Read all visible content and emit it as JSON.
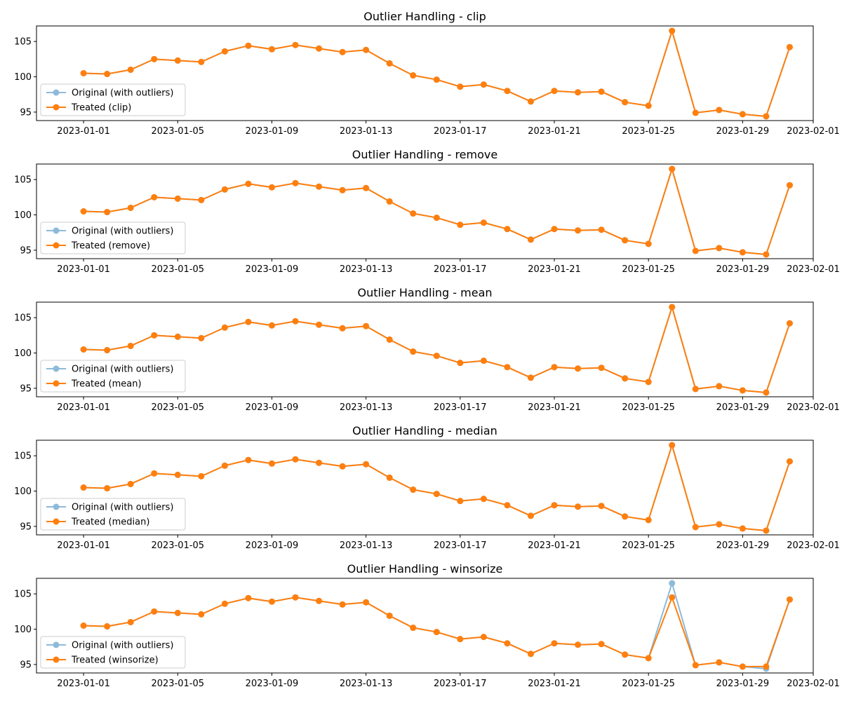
{
  "chart_data": [
    {
      "type": "line",
      "title": "Outlier Handling - clip",
      "x": [
        "2023-01-01",
        "2023-01-02",
        "2023-01-03",
        "2023-01-04",
        "2023-01-05",
        "2023-01-06",
        "2023-01-07",
        "2023-01-08",
        "2023-01-09",
        "2023-01-10",
        "2023-01-11",
        "2023-01-12",
        "2023-01-13",
        "2023-01-14",
        "2023-01-15",
        "2023-01-16",
        "2023-01-17",
        "2023-01-18",
        "2023-01-19",
        "2023-01-20",
        "2023-01-21",
        "2023-01-22",
        "2023-01-23",
        "2023-01-24",
        "2023-01-25",
        "2023-01-26",
        "2023-01-27",
        "2023-01-28",
        "2023-01-29",
        "2023-01-30",
        "2023-01-31"
      ],
      "xticks": [
        "2023-01-01",
        "2023-01-05",
        "2023-01-09",
        "2023-01-13",
        "2023-01-17",
        "2023-01-21",
        "2023-01-25",
        "2023-01-29",
        "2023-02-01"
      ],
      "xlim": [
        "2022-12-30",
        "2023-02-01"
      ],
      "yticks": [
        95,
        100,
        105
      ],
      "ylim": [
        93.8,
        107.2
      ],
      "legend_position": "lower-left",
      "series": [
        {
          "name": "Original (with outliers)",
          "color": "#1f77b4",
          "values": [
            100.5,
            100.4,
            101.0,
            102.5,
            102.3,
            102.1,
            103.6,
            104.4,
            103.9,
            104.5,
            104.0,
            103.5,
            103.8,
            101.9,
            100.2,
            99.6,
            98.6,
            98.9,
            98.0,
            96.5,
            98.0,
            97.8,
            97.9,
            96.4,
            95.9,
            106.5,
            94.9,
            95.3,
            94.7,
            94.4,
            104.2
          ]
        },
        {
          "name": "Treated (clip)",
          "color": "#ff7f0e",
          "values": [
            100.5,
            100.4,
            101.0,
            102.5,
            102.3,
            102.1,
            103.6,
            104.4,
            103.9,
            104.5,
            104.0,
            103.5,
            103.8,
            101.9,
            100.2,
            99.6,
            98.6,
            98.9,
            98.0,
            96.5,
            98.0,
            97.8,
            97.9,
            96.4,
            95.9,
            106.5,
            94.9,
            95.3,
            94.7,
            94.4,
            104.2
          ]
        }
      ]
    },
    {
      "type": "line",
      "title": "Outlier Handling - remove",
      "x": [
        "2023-01-01",
        "2023-01-02",
        "2023-01-03",
        "2023-01-04",
        "2023-01-05",
        "2023-01-06",
        "2023-01-07",
        "2023-01-08",
        "2023-01-09",
        "2023-01-10",
        "2023-01-11",
        "2023-01-12",
        "2023-01-13",
        "2023-01-14",
        "2023-01-15",
        "2023-01-16",
        "2023-01-17",
        "2023-01-18",
        "2023-01-19",
        "2023-01-20",
        "2023-01-21",
        "2023-01-22",
        "2023-01-23",
        "2023-01-24",
        "2023-01-25",
        "2023-01-26",
        "2023-01-27",
        "2023-01-28",
        "2023-01-29",
        "2023-01-30",
        "2023-01-31"
      ],
      "xticks": [
        "2023-01-01",
        "2023-01-05",
        "2023-01-09",
        "2023-01-13",
        "2023-01-17",
        "2023-01-21",
        "2023-01-25",
        "2023-01-29",
        "2023-02-01"
      ],
      "xlim": [
        "2022-12-30",
        "2023-02-01"
      ],
      "yticks": [
        95,
        100,
        105
      ],
      "ylim": [
        93.8,
        107.2
      ],
      "legend_position": "lower-left",
      "series": [
        {
          "name": "Original (with outliers)",
          "color": "#1f77b4",
          "values": [
            100.5,
            100.4,
            101.0,
            102.5,
            102.3,
            102.1,
            103.6,
            104.4,
            103.9,
            104.5,
            104.0,
            103.5,
            103.8,
            101.9,
            100.2,
            99.6,
            98.6,
            98.9,
            98.0,
            96.5,
            98.0,
            97.8,
            97.9,
            96.4,
            95.9,
            106.5,
            94.9,
            95.3,
            94.7,
            94.4,
            104.2
          ]
        },
        {
          "name": "Treated (remove)",
          "color": "#ff7f0e",
          "values": [
            100.5,
            100.4,
            101.0,
            102.5,
            102.3,
            102.1,
            103.6,
            104.4,
            103.9,
            104.5,
            104.0,
            103.5,
            103.8,
            101.9,
            100.2,
            99.6,
            98.6,
            98.9,
            98.0,
            96.5,
            98.0,
            97.8,
            97.9,
            96.4,
            95.9,
            106.5,
            94.9,
            95.3,
            94.7,
            94.4,
            104.2
          ]
        }
      ]
    },
    {
      "type": "line",
      "title": "Outlier Handling - mean",
      "x": [
        "2023-01-01",
        "2023-01-02",
        "2023-01-03",
        "2023-01-04",
        "2023-01-05",
        "2023-01-06",
        "2023-01-07",
        "2023-01-08",
        "2023-01-09",
        "2023-01-10",
        "2023-01-11",
        "2023-01-12",
        "2023-01-13",
        "2023-01-14",
        "2023-01-15",
        "2023-01-16",
        "2023-01-17",
        "2023-01-18",
        "2023-01-19",
        "2023-01-20",
        "2023-01-21",
        "2023-01-22",
        "2023-01-23",
        "2023-01-24",
        "2023-01-25",
        "2023-01-26",
        "2023-01-27",
        "2023-01-28",
        "2023-01-29",
        "2023-01-30",
        "2023-01-31"
      ],
      "xticks": [
        "2023-01-01",
        "2023-01-05",
        "2023-01-09",
        "2023-01-13",
        "2023-01-17",
        "2023-01-21",
        "2023-01-25",
        "2023-01-29",
        "2023-02-01"
      ],
      "xlim": [
        "2022-12-30",
        "2023-02-01"
      ],
      "yticks": [
        95,
        100,
        105
      ],
      "ylim": [
        93.8,
        107.2
      ],
      "legend_position": "lower-left",
      "series": [
        {
          "name": "Original (with outliers)",
          "color": "#1f77b4",
          "values": [
            100.5,
            100.4,
            101.0,
            102.5,
            102.3,
            102.1,
            103.6,
            104.4,
            103.9,
            104.5,
            104.0,
            103.5,
            103.8,
            101.9,
            100.2,
            99.6,
            98.6,
            98.9,
            98.0,
            96.5,
            98.0,
            97.8,
            97.9,
            96.4,
            95.9,
            106.5,
            94.9,
            95.3,
            94.7,
            94.4,
            104.2
          ]
        },
        {
          "name": "Treated (mean)",
          "color": "#ff7f0e",
          "values": [
            100.5,
            100.4,
            101.0,
            102.5,
            102.3,
            102.1,
            103.6,
            104.4,
            103.9,
            104.5,
            104.0,
            103.5,
            103.8,
            101.9,
            100.2,
            99.6,
            98.6,
            98.9,
            98.0,
            96.5,
            98.0,
            97.8,
            97.9,
            96.4,
            95.9,
            106.5,
            94.9,
            95.3,
            94.7,
            94.4,
            104.2
          ]
        }
      ]
    },
    {
      "type": "line",
      "title": "Outlier Handling - median",
      "x": [
        "2023-01-01",
        "2023-01-02",
        "2023-01-03",
        "2023-01-04",
        "2023-01-05",
        "2023-01-06",
        "2023-01-07",
        "2023-01-08",
        "2023-01-09",
        "2023-01-10",
        "2023-01-11",
        "2023-01-12",
        "2023-01-13",
        "2023-01-14",
        "2023-01-15",
        "2023-01-16",
        "2023-01-17",
        "2023-01-18",
        "2023-01-19",
        "2023-01-20",
        "2023-01-21",
        "2023-01-22",
        "2023-01-23",
        "2023-01-24",
        "2023-01-25",
        "2023-01-26",
        "2023-01-27",
        "2023-01-28",
        "2023-01-29",
        "2023-01-30",
        "2023-01-31"
      ],
      "xticks": [
        "2023-01-01",
        "2023-01-05",
        "2023-01-09",
        "2023-01-13",
        "2023-01-17",
        "2023-01-21",
        "2023-01-25",
        "2023-01-29",
        "2023-02-01"
      ],
      "xlim": [
        "2022-12-30",
        "2023-02-01"
      ],
      "yticks": [
        95,
        100,
        105
      ],
      "ylim": [
        93.8,
        107.2
      ],
      "legend_position": "lower-left",
      "series": [
        {
          "name": "Original (with outliers)",
          "color": "#1f77b4",
          "values": [
            100.5,
            100.4,
            101.0,
            102.5,
            102.3,
            102.1,
            103.6,
            104.4,
            103.9,
            104.5,
            104.0,
            103.5,
            103.8,
            101.9,
            100.2,
            99.6,
            98.6,
            98.9,
            98.0,
            96.5,
            98.0,
            97.8,
            97.9,
            96.4,
            95.9,
            106.5,
            94.9,
            95.3,
            94.7,
            94.4,
            104.2
          ]
        },
        {
          "name": "Treated (median)",
          "color": "#ff7f0e",
          "values": [
            100.5,
            100.4,
            101.0,
            102.5,
            102.3,
            102.1,
            103.6,
            104.4,
            103.9,
            104.5,
            104.0,
            103.5,
            103.8,
            101.9,
            100.2,
            99.6,
            98.6,
            98.9,
            98.0,
            96.5,
            98.0,
            97.8,
            97.9,
            96.4,
            95.9,
            106.5,
            94.9,
            95.3,
            94.7,
            94.4,
            104.2
          ]
        }
      ]
    },
    {
      "type": "line",
      "title": "Outlier Handling - winsorize",
      "x": [
        "2023-01-01",
        "2023-01-02",
        "2023-01-03",
        "2023-01-04",
        "2023-01-05",
        "2023-01-06",
        "2023-01-07",
        "2023-01-08",
        "2023-01-09",
        "2023-01-10",
        "2023-01-11",
        "2023-01-12",
        "2023-01-13",
        "2023-01-14",
        "2023-01-15",
        "2023-01-16",
        "2023-01-17",
        "2023-01-18",
        "2023-01-19",
        "2023-01-20",
        "2023-01-21",
        "2023-01-22",
        "2023-01-23",
        "2023-01-24",
        "2023-01-25",
        "2023-01-26",
        "2023-01-27",
        "2023-01-28",
        "2023-01-29",
        "2023-01-30",
        "2023-01-31"
      ],
      "xticks": [
        "2023-01-01",
        "2023-01-05",
        "2023-01-09",
        "2023-01-13",
        "2023-01-17",
        "2023-01-21",
        "2023-01-25",
        "2023-01-29",
        "2023-02-01"
      ],
      "xlim": [
        "2022-12-30",
        "2023-02-01"
      ],
      "yticks": [
        95,
        100,
        105
      ],
      "ylim": [
        93.8,
        107.2
      ],
      "legend_position": "lower-left",
      "series": [
        {
          "name": "Original (with outliers)",
          "color": "#1f77b4",
          "values": [
            100.5,
            100.4,
            101.0,
            102.5,
            102.3,
            102.1,
            103.6,
            104.4,
            103.9,
            104.5,
            104.0,
            103.5,
            103.8,
            101.9,
            100.2,
            99.6,
            98.6,
            98.9,
            98.0,
            96.5,
            98.0,
            97.8,
            97.9,
            96.4,
            95.9,
            106.5,
            94.9,
            95.3,
            94.7,
            94.4,
            104.2
          ]
        },
        {
          "name": "Treated (winsorize)",
          "color": "#ff7f0e",
          "values": [
            100.5,
            100.4,
            101.0,
            102.5,
            102.3,
            102.1,
            103.6,
            104.4,
            103.9,
            104.5,
            104.0,
            103.5,
            103.8,
            101.9,
            100.2,
            99.6,
            98.6,
            98.9,
            98.0,
            96.5,
            98.0,
            97.8,
            97.9,
            96.4,
            95.9,
            104.5,
            94.9,
            95.3,
            94.7,
            94.7,
            104.2
          ]
        }
      ]
    }
  ]
}
